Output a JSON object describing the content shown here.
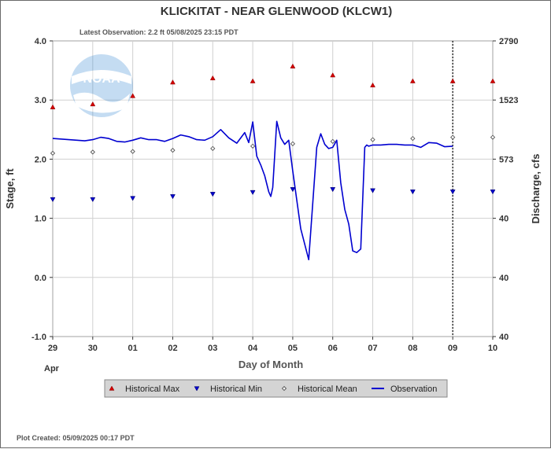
{
  "title": "KLICKITAT - NEAR GLENWOOD  (KLCW1)",
  "latest_observation": "Latest Observation: 2.2 ft 05/08/2025 23:15 PDT",
  "plot_created": "Plot Created: 05/09/2025 00:17 PDT",
  "logo_text": "NOAA",
  "chart_data": {
    "type": "line",
    "title": "KLICKITAT - NEAR GLENWOOD  (KLCW1)",
    "xlabel": "Day of Month",
    "ylabel": "Stage, ft",
    "y2label": "Discharge, cfs",
    "xlim": [
      0,
      11
    ],
    "ylim": [
      -1.0,
      4.0
    ],
    "x_ticks": [
      0,
      1,
      2,
      3,
      4,
      5,
      6,
      7,
      8,
      9,
      10,
      11
    ],
    "x_tick_labels": [
      "29",
      "30",
      "01",
      "02",
      "03",
      "04",
      "05",
      "06",
      "07",
      "08",
      "09",
      "10"
    ],
    "x_month_label": "Apr",
    "y_ticks": [
      -1.0,
      0.0,
      1.0,
      2.0,
      3.0,
      4.0
    ],
    "y_tick_labels": [
      "-1.0",
      "0.0",
      "1.0",
      "2.0",
      "3.0",
      "4.0"
    ],
    "y2_ticks": [
      -1.0,
      0.0,
      1.0,
      2.0,
      3.0,
      4.0
    ],
    "y2_tick_labels": [
      "40",
      "40",
      "40",
      "573",
      "1523",
      "2790"
    ],
    "grid": true,
    "forecast_line_x": 10,
    "legend_position": "bottom",
    "colors": {
      "max": "#d40000",
      "min": "#0000cc",
      "mean": "#555555",
      "observation": "#0000d0",
      "plot_bg": "#ffffff",
      "grid": "#d0d0d0",
      "legend_bg": "#d4d4d4"
    },
    "legend": [
      {
        "key": "max",
        "label": "Historical Max"
      },
      {
        "key": "min",
        "label": "Historical Min"
      },
      {
        "key": "mean",
        "label": "Historical Mean"
      },
      {
        "key": "observation",
        "label": "Observation"
      }
    ],
    "series": [
      {
        "name": "Historical Max",
        "key": "max",
        "x": [
          0,
          1,
          2,
          3,
          4,
          5,
          6,
          7,
          8,
          9,
          10,
          11
        ],
        "values": [
          2.88,
          2.93,
          3.07,
          3.3,
          3.37,
          3.32,
          3.57,
          3.42,
          3.25,
          3.32,
          3.32,
          3.32
        ]
      },
      {
        "name": "Historical Min",
        "key": "min",
        "x": [
          0,
          1,
          2,
          3,
          4,
          5,
          6,
          7,
          8,
          9,
          10,
          11
        ],
        "values": [
          1.32,
          1.32,
          1.34,
          1.37,
          1.41,
          1.44,
          1.49,
          1.49,
          1.47,
          1.45,
          1.45,
          1.45
        ]
      },
      {
        "name": "Historical Mean",
        "key": "mean",
        "x": [
          0,
          1,
          2,
          3,
          4,
          5,
          6,
          7,
          8,
          9,
          10,
          11
        ],
        "values": [
          2.1,
          2.12,
          2.13,
          2.15,
          2.18,
          2.22,
          2.26,
          2.3,
          2.33,
          2.35,
          2.37,
          2.37
        ]
      },
      {
        "name": "Observation",
        "key": "observation",
        "x": [
          0,
          0.2,
          0.4,
          0.6,
          0.8,
          1.0,
          1.2,
          1.4,
          1.6,
          1.8,
          2.0,
          2.2,
          2.4,
          2.6,
          2.8,
          3.0,
          3.2,
          3.4,
          3.6,
          3.8,
          4.0,
          4.2,
          4.4,
          4.6,
          4.8,
          4.9,
          5.0,
          5.1,
          5.2,
          5.3,
          5.4,
          5.45,
          5.5,
          5.6,
          5.7,
          5.8,
          5.9,
          6.0,
          6.2,
          6.4,
          6.6,
          6.7,
          6.8,
          6.9,
          7.0,
          7.1,
          7.2,
          7.3,
          7.4,
          7.5,
          7.6,
          7.7,
          7.8,
          7.85,
          7.9,
          8.0,
          8.2,
          8.4,
          8.6,
          8.8,
          9.0,
          9.2,
          9.4,
          9.6,
          9.8,
          10.0
        ],
        "values": [
          2.35,
          2.34,
          2.33,
          2.32,
          2.31,
          2.33,
          2.37,
          2.35,
          2.3,
          2.29,
          2.32,
          2.36,
          2.33,
          2.33,
          2.3,
          2.35,
          2.41,
          2.38,
          2.33,
          2.32,
          2.38,
          2.5,
          2.36,
          2.27,
          2.45,
          2.28,
          2.63,
          2.05,
          1.9,
          1.72,
          1.45,
          1.37,
          1.52,
          2.64,
          2.36,
          2.25,
          2.32,
          1.8,
          0.82,
          0.3,
          2.2,
          2.43,
          2.25,
          2.18,
          2.2,
          2.32,
          1.6,
          1.15,
          0.9,
          0.45,
          0.42,
          0.48,
          2.2,
          2.24,
          2.22,
          2.24,
          2.24,
          2.25,
          2.25,
          2.24,
          2.24,
          2.2,
          2.28,
          2.27,
          2.21,
          2.22
        ]
      }
    ]
  }
}
